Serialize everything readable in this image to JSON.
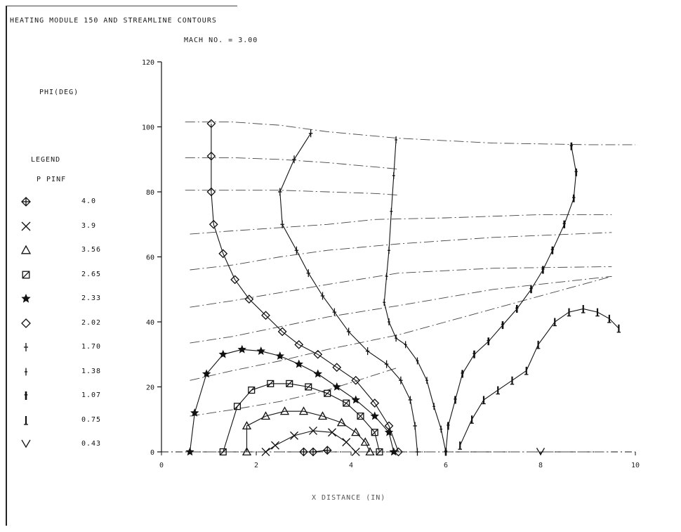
{
  "chart_data": {
    "type": "line",
    "title": "HEATING MODULE 150  AND STREAMLINE CONTOURS",
    "subtitle": "MACH NO. =   3.00",
    "ylabel": "PHI(DEG)",
    "xlabel": "X DISTANCE (IN)",
    "xlim": [
      0,
      10
    ],
    "ylim": [
      0,
      120
    ],
    "x_ticks": [
      "0",
      "2",
      "4",
      "6",
      "8",
      "10"
    ],
    "y_ticks": [
      "0",
      "20",
      "40",
      "60",
      "80",
      "100",
      "120"
    ],
    "legend": {
      "title": "LEGEND",
      "header": "P PINF",
      "entries": [
        {
          "marker": "diamond-cross",
          "value": "4.0"
        },
        {
          "marker": "x",
          "value": "3.9"
        },
        {
          "marker": "triangle",
          "value": "3.56"
        },
        {
          "marker": "square",
          "value": "2.65"
        },
        {
          "marker": "star",
          "value": "2.33"
        },
        {
          "marker": "diamond",
          "value": "2.02"
        },
        {
          "marker": "plus",
          "value": "1.70"
        },
        {
          "marker": "plus-small",
          "value": "1.38"
        },
        {
          "marker": "bar-tee",
          "value": "1.07"
        },
        {
          "marker": "bar-tee-down",
          "value": "0.75"
        },
        {
          "marker": "vee",
          "value": "0.43"
        }
      ]
    },
    "series": [
      {
        "marker": "diamond-cross",
        "points": [
          [
            3.0,
            0
          ],
          [
            3.2,
            0
          ],
          [
            3.5,
            0.5
          ]
        ]
      },
      {
        "marker": "x",
        "points": [
          [
            2.2,
            0
          ],
          [
            2.4,
            2
          ],
          [
            2.8,
            5
          ],
          [
            3.2,
            6.5
          ],
          [
            3.6,
            6
          ],
          [
            3.9,
            3
          ],
          [
            4.1,
            0
          ]
        ]
      },
      {
        "marker": "triangle",
        "points": [
          [
            1.8,
            0
          ],
          [
            1.8,
            8
          ],
          [
            2.2,
            11
          ],
          [
            2.6,
            12.5
          ],
          [
            3.0,
            12.5
          ],
          [
            3.4,
            11
          ],
          [
            3.8,
            9
          ],
          [
            4.1,
            6
          ],
          [
            4.3,
            3
          ],
          [
            4.4,
            0
          ]
        ]
      },
      {
        "marker": "square",
        "points": [
          [
            1.3,
            0
          ],
          [
            1.6,
            14
          ],
          [
            1.9,
            19
          ],
          [
            2.3,
            21
          ],
          [
            2.7,
            21
          ],
          [
            3.1,
            20
          ],
          [
            3.5,
            18
          ],
          [
            3.9,
            15
          ],
          [
            4.2,
            11
          ],
          [
            4.5,
            6
          ],
          [
            4.6,
            0
          ]
        ]
      },
      {
        "marker": "star",
        "points": [
          [
            0.6,
            0
          ],
          [
            0.7,
            12
          ],
          [
            0.95,
            24
          ],
          [
            1.3,
            30
          ],
          [
            1.7,
            31.5
          ],
          [
            2.1,
            31
          ],
          [
            2.5,
            29.5
          ],
          [
            2.9,
            27
          ],
          [
            3.3,
            24
          ],
          [
            3.7,
            20
          ],
          [
            4.1,
            16
          ],
          [
            4.5,
            11
          ],
          [
            4.8,
            6
          ],
          [
            4.9,
            0
          ]
        ]
      },
      {
        "marker": "diamond",
        "points": [
          [
            1.05,
            101
          ],
          [
            1.05,
            91
          ],
          [
            1.05,
            80
          ],
          [
            1.1,
            70
          ],
          [
            1.3,
            61
          ],
          [
            1.55,
            53
          ],
          [
            1.85,
            47
          ],
          [
            2.2,
            42
          ],
          [
            2.55,
            37
          ],
          [
            2.9,
            33
          ],
          [
            3.3,
            30
          ],
          [
            3.7,
            26
          ],
          [
            4.1,
            22
          ],
          [
            4.5,
            15
          ],
          [
            4.8,
            8
          ],
          [
            5.0,
            0
          ]
        ]
      },
      {
        "marker": "plus",
        "points": [
          [
            3.15,
            98
          ],
          [
            2.8,
            90
          ],
          [
            2.5,
            80
          ],
          [
            2.55,
            70
          ],
          [
            2.85,
            62
          ],
          [
            3.1,
            55
          ],
          [
            3.4,
            48
          ],
          [
            3.65,
            43
          ],
          [
            3.95,
            37
          ],
          [
            4.35,
            31
          ],
          [
            4.75,
            27
          ],
          [
            5.05,
            22
          ],
          [
            5.25,
            16
          ],
          [
            5.35,
            8
          ],
          [
            5.4,
            0
          ]
        ]
      },
      {
        "marker": "plus-small",
        "points": [
          [
            4.95,
            96
          ],
          [
            4.9,
            85
          ],
          [
            4.85,
            74
          ],
          [
            4.8,
            62
          ],
          [
            4.75,
            54
          ],
          [
            4.7,
            46
          ],
          [
            4.8,
            40
          ],
          [
            4.95,
            35
          ],
          [
            5.15,
            33
          ],
          [
            5.4,
            28
          ],
          [
            5.6,
            22
          ],
          [
            5.75,
            14
          ],
          [
            5.9,
            7
          ],
          [
            6.0,
            0
          ]
        ]
      },
      {
        "marker": "bar-tee",
        "points": [
          [
            8.65,
            94
          ],
          [
            8.75,
            86
          ],
          [
            8.7,
            78
          ],
          [
            8.5,
            70
          ],
          [
            8.25,
            62
          ],
          [
            8.05,
            56
          ],
          [
            7.8,
            50
          ],
          [
            7.5,
            44
          ],
          [
            7.2,
            39
          ],
          [
            6.9,
            34
          ],
          [
            6.6,
            30
          ],
          [
            6.35,
            24
          ],
          [
            6.2,
            16
          ],
          [
            6.05,
            8
          ],
          [
            6.0,
            0
          ]
        ]
      },
      {
        "marker": "bar-tee-down",
        "points": [
          [
            6.3,
            2
          ],
          [
            6.55,
            10
          ],
          [
            6.8,
            16
          ],
          [
            7.1,
            19
          ],
          [
            7.4,
            22
          ],
          [
            7.7,
            25
          ],
          [
            7.95,
            33
          ],
          [
            8.3,
            40
          ],
          [
            8.6,
            43
          ],
          [
            8.9,
            44
          ],
          [
            9.2,
            43
          ],
          [
            9.45,
            41
          ],
          [
            9.65,
            38
          ]
        ]
      },
      {
        "marker": "vee",
        "points": [
          [
            8.0,
            0
          ]
        ]
      }
    ],
    "streamlines": [
      [
        [
          0.5,
          101.5
        ],
        [
          1.5,
          101.5
        ],
        [
          2.5,
          100.5
        ],
        [
          3.5,
          98.5
        ],
        [
          5,
          96.5
        ],
        [
          7,
          95
        ],
        [
          9,
          94.5
        ],
        [
          10,
          94.5
        ]
      ],
      [
        [
          0.5,
          90.5
        ],
        [
          1.5,
          90.5
        ],
        [
          2.5,
          90
        ],
        [
          3.5,
          89
        ],
        [
          5,
          87
        ]
      ],
      [
        [
          0.5,
          80.5
        ],
        [
          1.5,
          80.5
        ],
        [
          2.5,
          80.5
        ],
        [
          3.5,
          80
        ],
        [
          4.5,
          79.5
        ],
        [
          5,
          79
        ]
      ],
      [
        [
          0.6,
          67
        ],
        [
          1.5,
          68
        ],
        [
          2.5,
          69
        ],
        [
          3.5,
          70
        ],
        [
          4.5,
          71.5
        ],
        [
          6,
          72
        ],
        [
          8,
          73
        ],
        [
          9.5,
          73
        ]
      ],
      [
        [
          0.6,
          56
        ],
        [
          1.5,
          57.5
        ],
        [
          2.5,
          60
        ],
        [
          3.5,
          62
        ],
        [
          5,
          64
        ],
        [
          7,
          66
        ],
        [
          9.5,
          67.5
        ]
      ],
      [
        [
          0.6,
          44.5
        ],
        [
          1.5,
          46.5
        ],
        [
          2.5,
          49
        ],
        [
          3.5,
          51.5
        ],
        [
          5,
          55
        ],
        [
          7,
          56.5
        ],
        [
          9.5,
          57
        ]
      ],
      [
        [
          0.6,
          33.5
        ],
        [
          1.5,
          35.5
        ],
        [
          2.5,
          38.5
        ],
        [
          3.5,
          41.5
        ],
        [
          5,
          45
        ],
        [
          7,
          50
        ],
        [
          9.5,
          54
        ]
      ],
      [
        [
          0.6,
          22
        ],
        [
          1.5,
          25
        ],
        [
          2.5,
          28
        ],
        [
          3.5,
          31.5
        ],
        [
          5,
          36
        ],
        [
          7,
          44
        ],
        [
          9.5,
          54
        ]
      ],
      [
        [
          0.6,
          11
        ],
        [
          1.5,
          13
        ],
        [
          2.5,
          15.5
        ],
        [
          3.5,
          19
        ],
        [
          5,
          26
        ]
      ],
      [
        [
          0.6,
          0
        ],
        [
          4.5,
          0
        ],
        [
          6.5,
          0
        ],
        [
          8,
          0
        ],
        [
          9.5,
          0
        ]
      ]
    ]
  }
}
